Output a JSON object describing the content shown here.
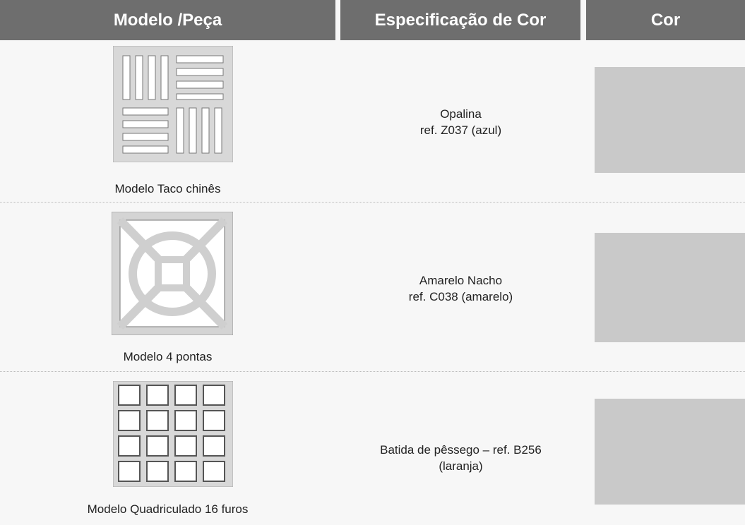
{
  "table": {
    "headers": [
      "Modelo /Peça",
      "Especificação de Cor",
      "Cor"
    ],
    "rows": [
      {
        "model": "Modelo Taco chinês",
        "spec": [
          "Opalina",
          "ref. Z037 (azul)"
        ]
      },
      {
        "model": "Modelo 4 pontas",
        "spec": [
          "Amarelo Nacho",
          "ref. C038 (amarelo)"
        ]
      },
      {
        "model": "Modelo Quadriculado 16 furos",
        "spec": [
          "Batida de pêssego – ref. B256",
          "(laranja)"
        ]
      }
    ]
  }
}
